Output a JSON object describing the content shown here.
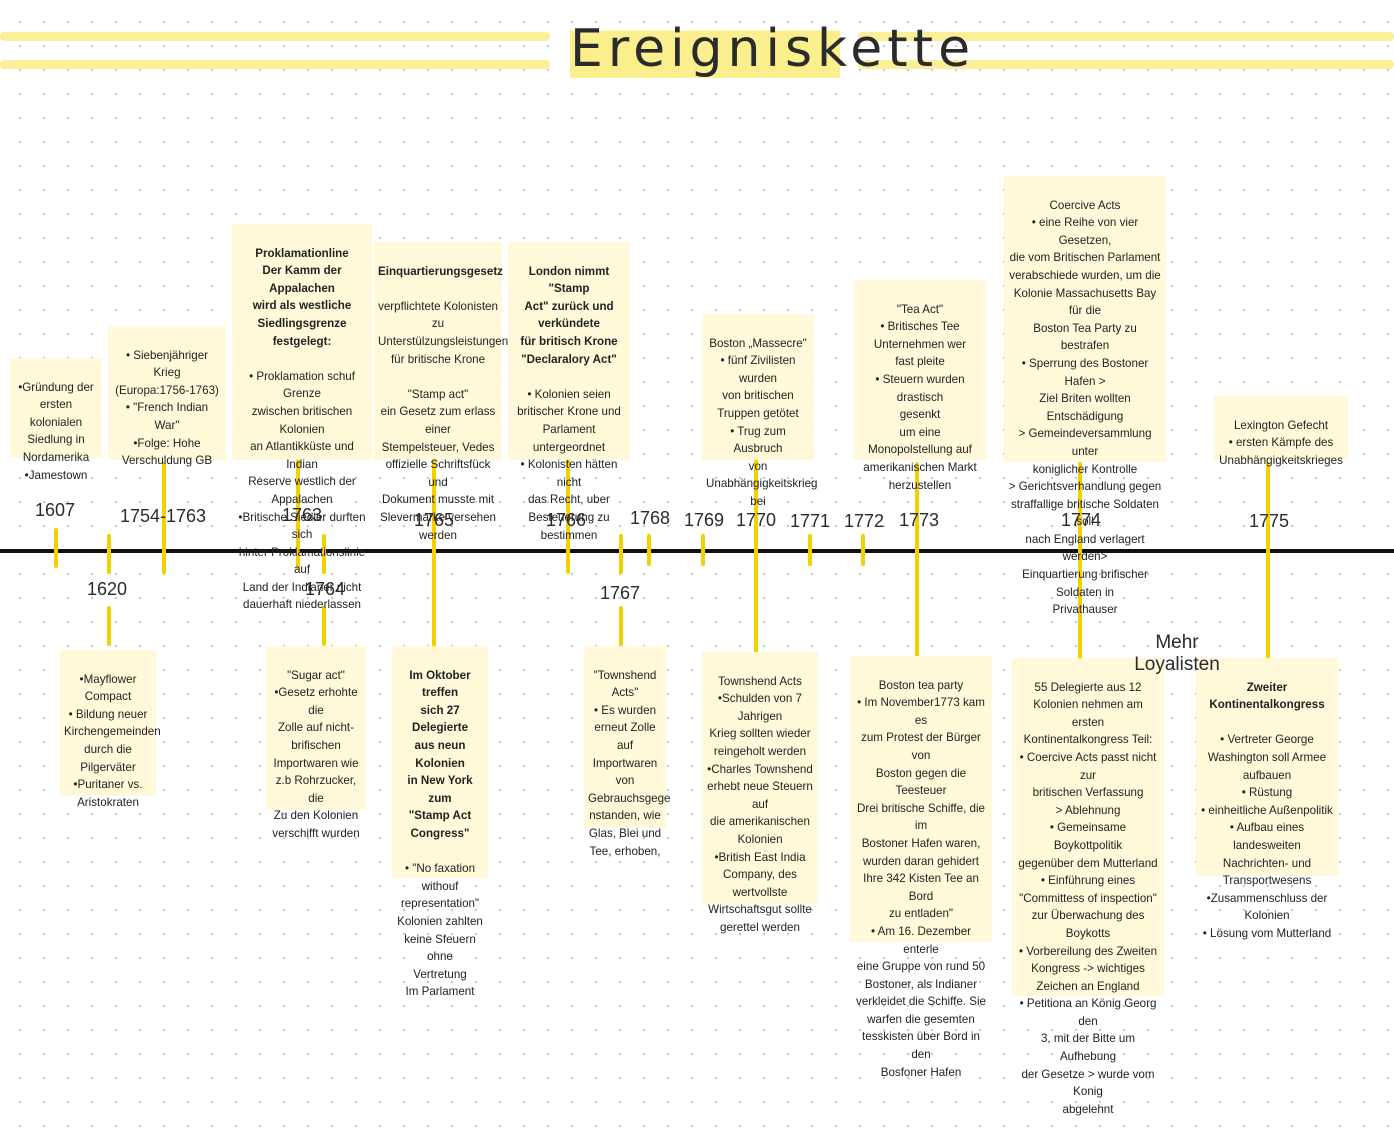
{
  "title": "Ereigniskette",
  "annotation": "Mehr Loyalisten",
  "years": {
    "y1607": "1607",
    "y1620": "1620",
    "y1754": "1754-1763",
    "y1763": "1763",
    "y1764": "1764",
    "y1765": "1765",
    "y1766": "1766",
    "y1767": "1767",
    "y1768": "1768",
    "y1769": "1769",
    "y1770": "1770",
    "y1771": "1771",
    "y1772": "1772",
    "y1773": "1773",
    "y1774": "1774",
    "y1775": "1775"
  },
  "cards": {
    "c1607": {
      "title": "",
      "body": "•Gründung der\nersten kolonialen\nSiedlung in\nNordamerika\n•Jamestown"
    },
    "c1620": {
      "title": "",
      "body": "•Mayflower\nCompact\n• Bildung neuer\nKirchengemeinden\ndurch die\nPilgerväter\n•Puritaner vs.\nAristokraten"
    },
    "c1754": {
      "title": "",
      "body": "• Siebenjähriger\nKrieg\n(Europa:1756-1763)\n• \"French Indian\nWar\"\n•Folge: Hohe\nVerschuldung GB"
    },
    "c1763": {
      "title": "Proklamationline\nDer Kamm der Appalachen\nwird als westliche\nSiedlingsgrenze festgelegt:",
      "body": "• Proklamation schuf Grenze\nzwischen britischen Kolonien\nan Atlantikküste und Indian\nReserve westlich der\nAppalachen\n•Britische Siedler durften sich\nhinter Proklamationslinie auf\nLand der Indianer nicht\ndauerhaft niederlassen"
    },
    "c1764": {
      "title": "",
      "body": "\"Sugar act\"\n•Gesetz erhohte\ndie\nZolle auf nicht-\nbrifischen\nImportwaren wie\nz.b Rohrzucker, die\nZu den Kolonien\nverschifft wurden"
    },
    "c1765a": {
      "title": "Einquartierungsgesetz",
      "body": "verpflichtete Kolonisten zu\nUnterstülzungsleistungen\nfür britische Krone\n\n\"Stamp act\"\nein Gesetz zum erlass einer\nStempelsteuer, Vedes\noffizielle Schriftsfück und\nDokument musste mit\nSlevermarke versehen\nwerden"
    },
    "c1765b": {
      "title": "Im Oktober treffen\nsich 27 Delegierte\naus neun Kolonien\nin New York zum\n\"Stamp Act\nCongress\"",
      "body": "• \"No faxation\nwithouf\nrepresentation\"\nKolonien zahlten\nkeine Sfeuern ohne\nVertretung\nIm Parlament"
    },
    "c1766": {
      "title": "London nimmt \"Stamp\nAct\" zurück und\nverkündete\nfür britisch Krone\n\"Declaralory Act\"",
      "body": "• Kolonien seien\nbritischer Krone und\nParlament untergeordnet\n• Kolonisten hätten nicht\ndas Recht, uber\nBesteuerung zu\nbestimmen"
    },
    "c1767": {
      "title": "",
      "body": "\"Townshend\nActs\"\n• Es wurden\nerneut Zolle auf\nImportwaren\nvon\nGebrauchsgege\nnstanden, wie\nGlas, Blei und\nTee, erhoben,"
    },
    "c1770a": {
      "title": "",
      "body": "Boston „Massecre\"\n• fünf Zivilisten wurden\nvon britischen\nTruppen getötet\n• Trug zum Ausbruch\nvon\nUnabhängigkeitskrieg\nbei"
    },
    "c1770b": {
      "title": "",
      "body": "Townshend Acts\n•Schulden von 7\nJahrigen\nKrieg sollten wieder\nreingeholt werden\n•Charles Townshend\nerhebt neue Steuern auf\ndie amerikanischen\nKolonien\n•British East India\nCompany, des\nwertvollste\nWirtschaftsgut sollte\ngerettel werden"
    },
    "c1773a": {
      "title": "",
      "body": "\"Tea Act\"\n• Britisches Tee\nUnternehmen wer\nfast pleite\n• Steuern wurden drastisch\ngesenkt\num eine\nMonopolstellung auf\namerikanischen Markt\nherzustellen"
    },
    "c1773b": {
      "title": "",
      "body": "Boston tea party\n• Im November1773 kam es\nzum Protest der Bürger von\nBoston gegen die Teesteuer\nDrei britische Schiffe, die im\nBostoner Hafen waren,\nwurden daran gehidert\nIhre 342 Kisten Tee an Bord\nzu entladen\"\n• Am 16. Dezember enterle\neine Gruppe von rund 50\nBostoner, als Indianer\nverkleidet die Schiffe. Sie\nwarfen die gesemten\ntesskisten über Bord in den\nBosfoner Hafen"
    },
    "c1774a": {
      "title": "",
      "body": "Coercive Acts\n• eine Reihe von vier Gesetzen,\ndie vom Britischen Parlament\nverabschiede wurden, um die\nKolonie Massachusetts Bay für die\nBoston Tea Party zu bestrafen\n• Sperrung des Bostoner Hafen >\nZiel Briten wollten Entschädigung\n> Gemeindeversammlung unter\nkoniglicher Kontrolle\n> Gerichtsverhandlung gegen\nstraffallige britische Soldaten soll\nnach England verlagert werden>\nEinquartierung brifischer\nSoldaten in\nPrivathauser"
    },
    "c1774b": {
      "title": "",
      "body": "55 Delegierte aus 12\nKolonien nehmen am ersten\nKontinentalkongress Teil:\n• Coercive Acts passt nicht zur\nbritischen Verfassung\n> Ablehnung\n• Gemeinsame Boykottpolitik\ngegenüber dem Mutterland\n• Einführung eines\n\"Committess of inspection\"\nzur Überwachung des\nBoykotts\n• Vorbereilung des Zweiten\nKongress -> wichtiges\nZeichen an England\n• Petitiona an König Georg den\n3, mit der Bitte um Aufhebung\nder Gesetze > wurde vom Konig\nabgelehnt"
    },
    "c1775a": {
      "title": "",
      "body": "Lexington Gefecht\n• ersten Kämpfe des\nUnabhängigkeitskrieges"
    },
    "c1775b": {
      "title": "Zweiter Kontinentalkongress",
      "body": "• Vertreter George\nWashington soll Armee\naufbauen\n• Rüstung\n• einheitliche Außenpolitik\n• Aufbau eines landesweiten\nNachrichten- und\nTransportwesens\n•Zusammenschluss der\nKolonien\n• Lösung vom Mutterland"
    }
  },
  "colors": {
    "highlight": "#fbef9a",
    "tick": "#f5d000",
    "axis": "#111111",
    "card": "#fff8d6"
  }
}
